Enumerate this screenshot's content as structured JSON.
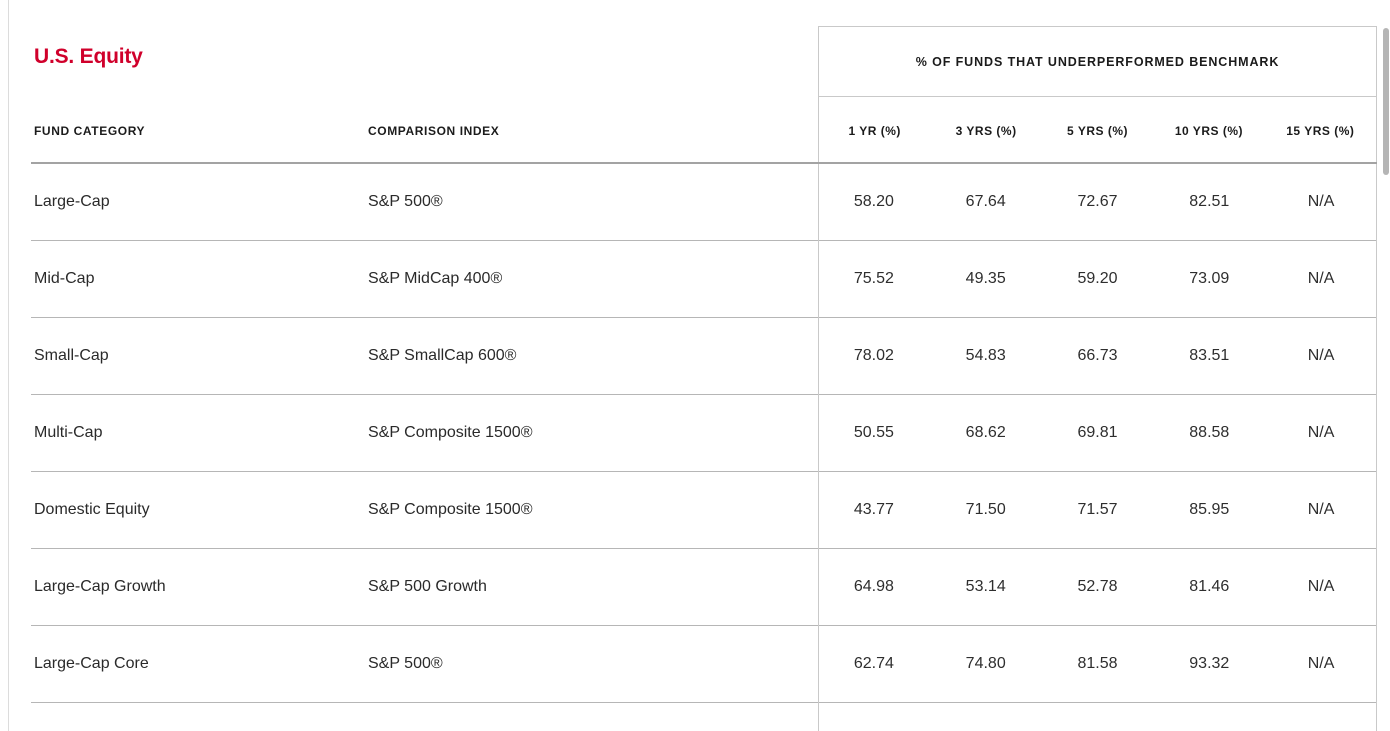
{
  "section": {
    "title": "U.S. Equity",
    "title_color": "#d0002b"
  },
  "table": {
    "fund_category_header": "FUND CATEGORY",
    "comparison_index_header": "COMPARISON INDEX",
    "group_header": "% OF FUNDS THAT UNDERPERFORMED BENCHMARK",
    "period_columns": [
      "1 YR (%)",
      "3 YRS (%)",
      "5 YRS (%)",
      "10 YRS (%)",
      "15 YRS (%)"
    ],
    "rows": [
      {
        "category": "Large-Cap",
        "index": "S&P 500®",
        "values": [
          "58.20",
          "67.64",
          "72.67",
          "82.51",
          "N/A"
        ]
      },
      {
        "category": "Mid-Cap",
        "index": "S&P MidCap 400®",
        "values": [
          "75.52",
          "49.35",
          "59.20",
          "73.09",
          "N/A"
        ]
      },
      {
        "category": "Small-Cap",
        "index": "S&P SmallCap 600®",
        "values": [
          "78.02",
          "54.83",
          "66.73",
          "83.51",
          "N/A"
        ]
      },
      {
        "category": "Multi-Cap",
        "index": "S&P Composite 1500®",
        "values": [
          "50.55",
          "68.62",
          "69.81",
          "88.58",
          "N/A"
        ]
      },
      {
        "category": "Domestic Equity",
        "index": "S&P Composite 1500®",
        "values": [
          "43.77",
          "71.50",
          "71.57",
          "85.95",
          "N/A"
        ]
      },
      {
        "category": "Large-Cap Growth",
        "index": "S&P 500 Growth",
        "values": [
          "64.98",
          "53.14",
          "52.78",
          "81.46",
          "N/A"
        ]
      },
      {
        "category": "Large-Cap Core",
        "index": "S&P 500®",
        "values": [
          "62.74",
          "74.80",
          "81.58",
          "93.32",
          "N/A"
        ]
      }
    ]
  }
}
